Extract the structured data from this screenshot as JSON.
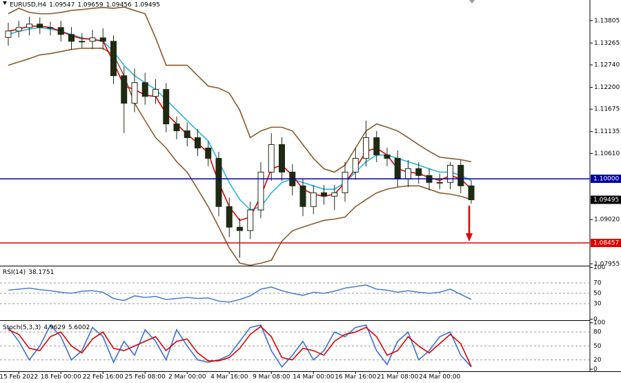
{
  "chart_data": [
    {
      "type": "candlestick",
      "title": "EURUSD,H4",
      "header_values": [
        1.09547,
        1.09659,
        1.09456,
        1.09495
      ],
      "categories": [
        null,
        "15 Feb 2022",
        null,
        null,
        null,
        "18 Feb 00:00",
        null,
        null,
        null,
        "22 Feb 16:00",
        null,
        null,
        null,
        "25 Feb 08:00",
        null,
        null,
        null,
        "2 Mar 00:00",
        null,
        null,
        null,
        "4 Mar 16:00",
        null,
        null,
        null,
        "9 Mar 08:00",
        null,
        null,
        null,
        "14 Mar 00:00",
        null,
        null,
        null,
        "16 Mar 16:00",
        null,
        null,
        null,
        "21 Mar 08:00",
        null,
        null,
        null,
        "24 Mar 00:00",
        null,
        null,
        null
      ],
      "open": [
        1.134,
        1.13555,
        1.13638,
        1.13721,
        1.13638,
        1.13638,
        1.13472,
        1.13307,
        1.13307,
        1.13389,
        1.13307,
        1.12479,
        1.11817,
        1.12313,
        1.11982,
        1.12148,
        1.1132,
        1.11154,
        1.10989,
        1.1074,
        1.10492,
        1.09333,
        1.08836,
        1.08754,
        1.0925,
        1.10161,
        1.10823,
        1.10161,
        1.0983,
        1.09333,
        1.09664,
        1.09581,
        1.09664,
        1.10161,
        1.10492,
        1.10989,
        1.10575,
        1.10492,
        1.09995,
        1.10244,
        1.10079,
        1.09913,
        1.09913,
        1.10326,
        1.0983
      ],
      "high": [
        1.1375,
        1.138,
        1.139,
        1.1388,
        1.1378,
        1.138,
        1.1365,
        1.135,
        1.1358,
        1.1362,
        1.1345,
        1.127,
        1.1265,
        1.1255,
        1.124,
        1.123,
        1.115,
        1.1135,
        1.112,
        1.109,
        1.1065,
        1.0955,
        1.0905,
        1.0945,
        1.104,
        1.111,
        1.11,
        1.1035,
        1.1,
        1.0985,
        1.0985,
        1.0985,
        1.104,
        1.1075,
        1.114,
        1.1115,
        1.1075,
        1.1068,
        1.1045,
        1.104,
        1.1025,
        1.1012,
        1.104,
        1.1045,
        1.0996
      ],
      "low": [
        1.132,
        1.134,
        1.1345,
        1.1348,
        1.1345,
        1.133,
        1.131,
        1.1315,
        1.1312,
        1.131,
        1.1228,
        1.111,
        1.116,
        1.1178,
        1.118,
        1.1112,
        1.1095,
        1.1078,
        1.1055,
        1.103,
        1.091,
        1.086,
        1.081,
        1.0855,
        1.0905,
        1.0995,
        1.0995,
        1.096,
        1.091,
        1.0915,
        1.0938,
        1.0925,
        1.0945,
        1.0998,
        1.103,
        1.104,
        1.103,
        1.098,
        1.098,
        1.0988,
        1.0972,
        1.0975,
        1.0975,
        1.0965,
        1.094
      ],
      "close": [
        1.13555,
        1.13638,
        1.13721,
        1.13638,
        1.13638,
        1.13472,
        1.13307,
        1.13307,
        1.13389,
        1.13307,
        1.12479,
        1.11817,
        1.12313,
        1.11982,
        1.12148,
        1.1132,
        1.11154,
        1.10989,
        1.1074,
        1.10492,
        1.09333,
        1.08836,
        1.08754,
        1.0925,
        1.10161,
        1.10823,
        1.10161,
        1.0983,
        1.09333,
        1.09664,
        1.09581,
        1.09664,
        1.10161,
        1.10492,
        1.10989,
        1.10575,
        1.10492,
        1.09995,
        1.10244,
        1.10079,
        1.09913,
        1.09913,
        1.10326,
        1.0983,
        1.09495
      ],
      "overlays": [
        {
          "color": "#8b5a2b",
          "values": [
            1.1397,
            1.141,
            1.14,
            1.1397,
            1.1397,
            1.14,
            1.1405,
            1.1407,
            1.141,
            1.1412,
            1.141,
            1.1413,
            1.1405,
            1.1397,
            1.1339,
            1.1273,
            1.1273,
            1.1273,
            1.1248,
            1.1223,
            1.1218,
            1.1206,
            1.1165,
            1.1099,
            1.1115,
            1.1124,
            1.1124,
            1.1115,
            1.1082,
            1.1049,
            1.1024,
            1.1016,
            1.1033,
            1.1074,
            1.1115,
            1.1132,
            1.1124,
            1.1115,
            1.1099,
            1.1082,
            1.1066,
            1.1052,
            1.1049,
            1.1046,
            1.1041
          ]
        },
        {
          "color": "#8b5a2b",
          "values": [
            1.1273,
            1.1281,
            1.1289,
            1.1298,
            1.1301,
            1.1306,
            1.1311,
            1.1314,
            1.1314,
            1.1314,
            1.1298,
            1.1248,
            1.1182,
            1.114,
            1.1099,
            1.1074,
            1.1041,
            1.1016,
            1.0975,
            1.0933,
            1.0884,
            1.0834,
            1.0797,
            1.0792,
            1.0797,
            1.0804,
            1.085,
            1.0875,
            1.0884,
            1.0892,
            1.09,
            1.0903,
            1.0908,
            1.0933,
            1.095,
            1.0966,
            1.0975,
            1.098,
            1.0983,
            1.0983,
            1.0975,
            1.0966,
            1.0963,
            1.0958,
            1.095
          ]
        },
        {
          "color": "#2ab4e0",
          "values": [
            1.1347,
            1.1355,
            1.136,
            1.1364,
            1.136,
            1.1355,
            1.1347,
            1.1339,
            1.1334,
            1.1331,
            1.1306,
            1.1273,
            1.1248,
            1.1231,
            1.1215,
            1.119,
            1.1165,
            1.114,
            1.1115,
            1.1091,
            1.1041,
            1.0991,
            1.095,
            1.0925,
            1.0933,
            1.0966,
            1.0991,
            1.0999,
            1.0991,
            1.0983,
            1.0975,
            1.0975,
            1.0991,
            1.1016,
            1.1041,
            1.1057,
            1.1057,
            1.1049,
            1.1041,
            1.1033,
            1.1024,
            1.1016,
            1.1016,
            1.1008,
            1.0996
          ]
        },
        {
          "color": "#e00000",
          "values": [
            1.1355,
            1.136,
            1.1367,
            1.1367,
            1.1364,
            1.1355,
            1.1344,
            1.1337,
            1.1336,
            1.1331,
            1.1281,
            1.1223,
            1.1215,
            1.1201,
            1.1198,
            1.1157,
            1.1132,
            1.1107,
            1.1086,
            1.1062,
            1.0991,
            1.0933,
            1.09,
            1.0908,
            1.0958,
            1.1024,
            1.1033,
            1.1008,
            1.0975,
            1.0963,
            1.0958,
            1.0963,
            1.0991,
            1.1024,
            1.1066,
            1.1074,
            1.1057,
            1.1024,
            1.1016,
            1.1013,
            1.1003,
            1.0996,
            1.1008,
            1.1,
            1.0975
          ]
        }
      ],
      "price_lines": [
        {
          "value": 1.1,
          "label": "1.10000",
          "color": "#0000a0"
        },
        {
          "value": 1.08457,
          "color": "#e00000"
        }
      ],
      "ylim": [
        1.0791,
        1.143
      ],
      "yticks": [
        1.07955,
        {
          "value": 1.0902,
          "label": "1.09020"
        },
        {
          "value": 1.1061,
          "label": "1.10610"
        },
        1.11135,
        1.11675,
        {
          "value": 1.122,
          "label": "1.12200"
        },
        {
          "value": 1.1274,
          "label": "1.12740"
        },
        1.13265,
        1.13805
      ]
    },
    {
      "type": "line",
      "title": "RSI(14)",
      "series": [
        {
          "color": "#4a7fd4",
          "values": [
            56,
            58,
            60,
            57,
            55,
            52,
            50,
            54,
            55,
            52,
            40,
            36,
            45,
            42,
            44,
            38,
            40,
            42,
            40,
            41,
            35,
            33,
            38,
            45,
            58,
            62,
            55,
            50,
            46,
            52,
            50,
            54,
            60,
            63,
            66,
            58,
            56,
            52,
            55,
            52,
            50,
            52,
            58,
            48,
            38.1751
          ]
        }
      ],
      "ylim": [
        0,
        100
      ],
      "yticks": [
        0,
        30,
        50,
        70,
        100
      ]
    },
    {
      "type": "line",
      "title": "Stoch(5,3,3)",
      "series": [
        {
          "color": "#3b6fd8",
          "values": [
            90,
            60,
            20,
            50,
            95,
            70,
            20,
            40,
            90,
            70,
            15,
            60,
            30,
            85,
            60,
            20,
            85,
            50,
            20,
            15,
            20,
            30,
            60,
            90,
            95,
            40,
            5,
            30,
            60,
            20,
            40,
            80,
            70,
            90,
            95,
            40,
            10,
            60,
            80,
            20,
            40,
            70,
            80,
            30,
            4.9629
          ]
        },
        {
          "color": "#e00000",
          "values": [
            85,
            75,
            45,
            40,
            70,
            80,
            50,
            35,
            65,
            80,
            45,
            40,
            50,
            60,
            70,
            40,
            60,
            65,
            35,
            18,
            18,
            25,
            45,
            75,
            92,
            70,
            25,
            20,
            45,
            40,
            30,
            60,
            75,
            80,
            90,
            70,
            30,
            40,
            70,
            50,
            35,
            55,
            75,
            55,
            5.6002
          ]
        }
      ],
      "ylim": [
        0,
        100
      ],
      "yticks": [
        0,
        20,
        50,
        80,
        100
      ]
    }
  ]
}
